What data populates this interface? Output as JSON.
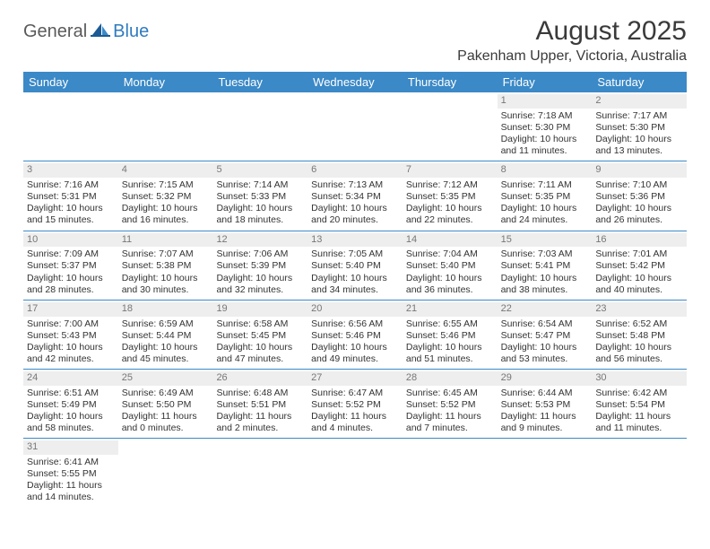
{
  "logo": {
    "general": "General",
    "blue": "Blue"
  },
  "title": "August 2025",
  "location": "Pakenham Upper, Victoria, Australia",
  "colors": {
    "header_bg": "#3b89c7",
    "header_text": "#ffffff",
    "daynum_bg": "#eeeeee",
    "daynum_text": "#777777",
    "body_text": "#333333",
    "divider": "#3b89c7"
  },
  "daynames": [
    "Sunday",
    "Monday",
    "Tuesday",
    "Wednesday",
    "Thursday",
    "Friday",
    "Saturday"
  ],
  "weeks": [
    [
      null,
      null,
      null,
      null,
      null,
      {
        "n": "1",
        "sr": "7:18 AM",
        "ss": "5:30 PM",
        "dl": "10 hours and 11 minutes."
      },
      {
        "n": "2",
        "sr": "7:17 AM",
        "ss": "5:30 PM",
        "dl": "10 hours and 13 minutes."
      }
    ],
    [
      {
        "n": "3",
        "sr": "7:16 AM",
        "ss": "5:31 PM",
        "dl": "10 hours and 15 minutes."
      },
      {
        "n": "4",
        "sr": "7:15 AM",
        "ss": "5:32 PM",
        "dl": "10 hours and 16 minutes."
      },
      {
        "n": "5",
        "sr": "7:14 AM",
        "ss": "5:33 PM",
        "dl": "10 hours and 18 minutes."
      },
      {
        "n": "6",
        "sr": "7:13 AM",
        "ss": "5:34 PM",
        "dl": "10 hours and 20 minutes."
      },
      {
        "n": "7",
        "sr": "7:12 AM",
        "ss": "5:35 PM",
        "dl": "10 hours and 22 minutes."
      },
      {
        "n": "8",
        "sr": "7:11 AM",
        "ss": "5:35 PM",
        "dl": "10 hours and 24 minutes."
      },
      {
        "n": "9",
        "sr": "7:10 AM",
        "ss": "5:36 PM",
        "dl": "10 hours and 26 minutes."
      }
    ],
    [
      {
        "n": "10",
        "sr": "7:09 AM",
        "ss": "5:37 PM",
        "dl": "10 hours and 28 minutes."
      },
      {
        "n": "11",
        "sr": "7:07 AM",
        "ss": "5:38 PM",
        "dl": "10 hours and 30 minutes."
      },
      {
        "n": "12",
        "sr": "7:06 AM",
        "ss": "5:39 PM",
        "dl": "10 hours and 32 minutes."
      },
      {
        "n": "13",
        "sr": "7:05 AM",
        "ss": "5:40 PM",
        "dl": "10 hours and 34 minutes."
      },
      {
        "n": "14",
        "sr": "7:04 AM",
        "ss": "5:40 PM",
        "dl": "10 hours and 36 minutes."
      },
      {
        "n": "15",
        "sr": "7:03 AM",
        "ss": "5:41 PM",
        "dl": "10 hours and 38 minutes."
      },
      {
        "n": "16",
        "sr": "7:01 AM",
        "ss": "5:42 PM",
        "dl": "10 hours and 40 minutes."
      }
    ],
    [
      {
        "n": "17",
        "sr": "7:00 AM",
        "ss": "5:43 PM",
        "dl": "10 hours and 42 minutes."
      },
      {
        "n": "18",
        "sr": "6:59 AM",
        "ss": "5:44 PM",
        "dl": "10 hours and 45 minutes."
      },
      {
        "n": "19",
        "sr": "6:58 AM",
        "ss": "5:45 PM",
        "dl": "10 hours and 47 minutes."
      },
      {
        "n": "20",
        "sr": "6:56 AM",
        "ss": "5:46 PM",
        "dl": "10 hours and 49 minutes."
      },
      {
        "n": "21",
        "sr": "6:55 AM",
        "ss": "5:46 PM",
        "dl": "10 hours and 51 minutes."
      },
      {
        "n": "22",
        "sr": "6:54 AM",
        "ss": "5:47 PM",
        "dl": "10 hours and 53 minutes."
      },
      {
        "n": "23",
        "sr": "6:52 AM",
        "ss": "5:48 PM",
        "dl": "10 hours and 56 minutes."
      }
    ],
    [
      {
        "n": "24",
        "sr": "6:51 AM",
        "ss": "5:49 PM",
        "dl": "10 hours and 58 minutes."
      },
      {
        "n": "25",
        "sr": "6:49 AM",
        "ss": "5:50 PM",
        "dl": "11 hours and 0 minutes."
      },
      {
        "n": "26",
        "sr": "6:48 AM",
        "ss": "5:51 PM",
        "dl": "11 hours and 2 minutes."
      },
      {
        "n": "27",
        "sr": "6:47 AM",
        "ss": "5:52 PM",
        "dl": "11 hours and 4 minutes."
      },
      {
        "n": "28",
        "sr": "6:45 AM",
        "ss": "5:52 PM",
        "dl": "11 hours and 7 minutes."
      },
      {
        "n": "29",
        "sr": "6:44 AM",
        "ss": "5:53 PM",
        "dl": "11 hours and 9 minutes."
      },
      {
        "n": "30",
        "sr": "6:42 AM",
        "ss": "5:54 PM",
        "dl": "11 hours and 11 minutes."
      }
    ],
    [
      {
        "n": "31",
        "sr": "6:41 AM",
        "ss": "5:55 PM",
        "dl": "11 hours and 14 minutes."
      },
      null,
      null,
      null,
      null,
      null,
      null
    ]
  ],
  "labels": {
    "sunrise": "Sunrise: ",
    "sunset": "Sunset: ",
    "daylight": "Daylight: "
  }
}
